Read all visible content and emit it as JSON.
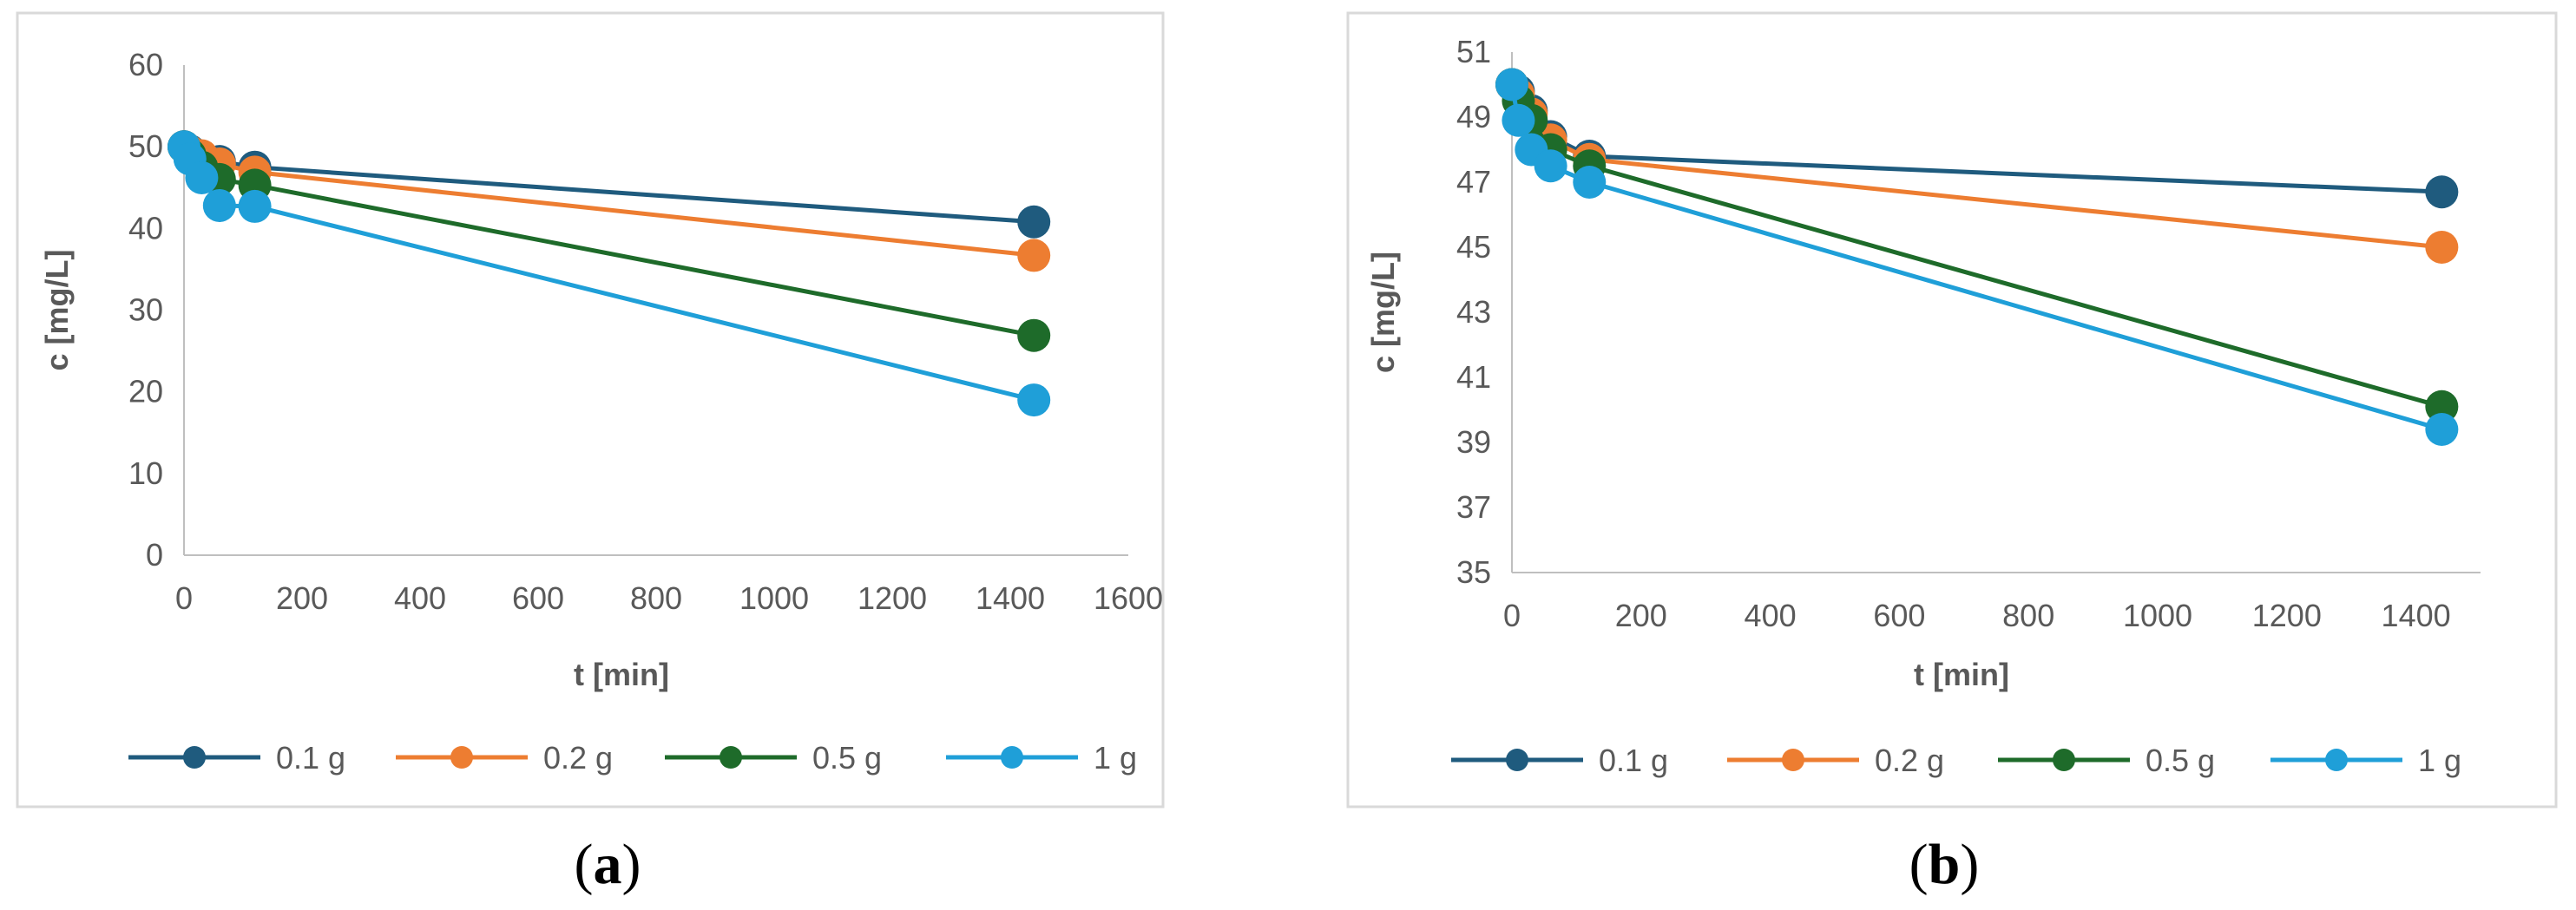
{
  "chart_data": [
    {
      "type": "line",
      "panel_label": "a",
      "xlabel": "t [min]",
      "ylabel": "c [mg/L]",
      "xlim": [
        0,
        1600
      ],
      "ylim": [
        0,
        60
      ],
      "x_ticks": [
        0,
        200,
        400,
        600,
        800,
        1000,
        1200,
        1400,
        1600
      ],
      "y_ticks": [
        0,
        10,
        20,
        30,
        40,
        50,
        60
      ],
      "grid": false,
      "legend_position": "bottom",
      "series": [
        {
          "name": "0.1 g",
          "color": "#1f5b7e",
          "x": [
            0,
            10,
            30,
            60,
            120,
            1440
          ],
          "y": [
            50,
            49.5,
            48.8,
            48.2,
            47.5,
            40.8
          ]
        },
        {
          "name": "0.2 g",
          "color": "#ed7d31",
          "x": [
            0,
            10,
            30,
            60,
            120,
            1440
          ],
          "y": [
            50,
            49.4,
            48.9,
            47.9,
            46.9,
            36.7
          ]
        },
        {
          "name": "0.5 g",
          "color": "#1e6b2a",
          "x": [
            0,
            10,
            30,
            60,
            120,
            1440
          ],
          "y": [
            50,
            49,
            47.5,
            46,
            45.3,
            26.9
          ]
        },
        {
          "name": "1 g",
          "color": "#1f9fd8",
          "x": [
            0,
            10,
            30,
            60,
            120,
            1440
          ],
          "y": [
            50,
            48.5,
            46.2,
            42.8,
            42.7,
            19
          ]
        }
      ]
    },
    {
      "type": "line",
      "panel_label": "b",
      "xlabel": "t [min]",
      "ylabel": "c [mg/L]",
      "xlim": [
        0,
        1500
      ],
      "ylim": [
        35,
        51
      ],
      "x_ticks": [
        0,
        200,
        400,
        600,
        800,
        1000,
        1200,
        1400
      ],
      "y_ticks": [
        35,
        37,
        39,
        41,
        43,
        45,
        47,
        49,
        51
      ],
      "grid": false,
      "legend_position": "bottom",
      "series": [
        {
          "name": "0.1 g",
          "color": "#1f5b7e",
          "x": [
            0,
            10,
            30,
            60,
            120,
            1440
          ],
          "y": [
            50,
            49.8,
            49.2,
            48.4,
            47.8,
            46.7
          ]
        },
        {
          "name": "0.2 g",
          "color": "#ed7d31",
          "x": [
            0,
            10,
            30,
            60,
            120,
            1440
          ],
          "y": [
            50,
            49.7,
            49.1,
            48.3,
            47.7,
            45
          ]
        },
        {
          "name": "0.5 g",
          "color": "#1e6b2a",
          "x": [
            0,
            10,
            30,
            60,
            120,
            1440
          ],
          "y": [
            50,
            49.5,
            48.9,
            48,
            47.5,
            40.1
          ]
        },
        {
          "name": "1 g",
          "color": "#1f9fd8",
          "x": [
            0,
            10,
            30,
            60,
            120,
            1440
          ],
          "y": [
            50,
            48.9,
            48,
            47.5,
            47,
            39.4
          ]
        }
      ]
    }
  ]
}
